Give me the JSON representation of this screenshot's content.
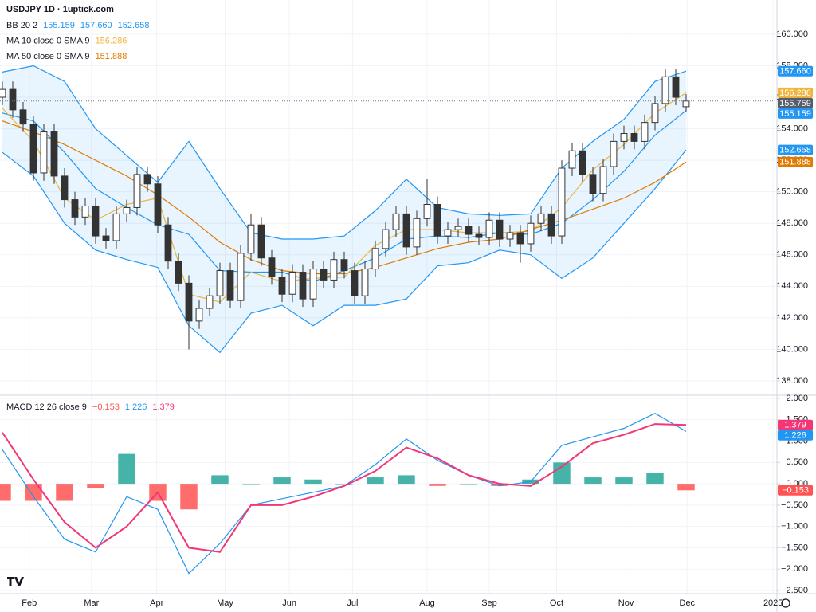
{
  "chart_data": [
    {
      "type": "candlestick",
      "title": "USDJPY 1D · 1uptick.com",
      "open": [
        156.0,
        156.5,
        155.2,
        154.3,
        151.2,
        153.8,
        151.0,
        149.5,
        148.4,
        149.1,
        147.2,
        146.9,
        148.6,
        149.0,
        151.1,
        150.5,
        147.9,
        145.6,
        144.2,
        141.8,
        142.6,
        143.4,
        145.0,
        143.1,
        146.1,
        147.9,
        145.8,
        144.6,
        143.5,
        144.9,
        143.2,
        145.1,
        144.4,
        145.7,
        145.0,
        143.4,
        145.1,
        146.4,
        147.6,
        148.6,
        146.5,
        148.3,
        149.2,
        147.2,
        147.6,
        147.8,
        147.3,
        147.1,
        148.2,
        147.0,
        147.4,
        146.7,
        148.0,
        148.6,
        147.2,
        151.5,
        152.6,
        151.1,
        149.9,
        151.6,
        153.2,
        153.7,
        153.2,
        154.4,
        155.6,
        157.3,
        155.4
      ],
      "high": [
        157.0,
        157.0,
        155.7,
        154.8,
        154.3,
        154.3,
        151.5,
        150.0,
        149.6,
        149.6,
        147.7,
        149.1,
        149.5,
        151.6,
        151.6,
        151.0,
        148.4,
        146.1,
        144.7,
        143.1,
        143.9,
        145.5,
        145.5,
        146.6,
        148.6,
        148.4,
        146.3,
        145.1,
        145.4,
        145.4,
        145.6,
        145.6,
        146.2,
        146.2,
        145.5,
        145.6,
        146.9,
        148.1,
        149.1,
        149.1,
        148.8,
        150.8,
        149.7,
        148.1,
        148.3,
        148.3,
        147.8,
        148.7,
        148.7,
        147.9,
        147.9,
        148.5,
        149.1,
        149.1,
        152.0,
        153.1,
        153.1,
        151.6,
        152.1,
        153.7,
        154.2,
        154.2,
        154.9,
        156.1,
        157.8,
        157.8,
        156.2
      ],
      "low": [
        155.5,
        154.7,
        153.8,
        150.7,
        150.7,
        150.5,
        149.0,
        147.9,
        147.9,
        146.7,
        146.4,
        146.4,
        148.1,
        148.5,
        150.0,
        147.4,
        145.1,
        143.7,
        140.0,
        141.3,
        142.1,
        142.9,
        142.6,
        142.6,
        145.6,
        145.3,
        144.1,
        143.0,
        143.0,
        142.7,
        142.7,
        143.9,
        143.9,
        144.5,
        142.9,
        142.9,
        144.6,
        145.9,
        147.1,
        146.0,
        146.0,
        147.8,
        146.7,
        146.7,
        147.1,
        146.8,
        146.6,
        146.6,
        146.5,
        146.5,
        145.5,
        146.2,
        147.5,
        146.7,
        146.7,
        151.0,
        150.6,
        149.4,
        149.4,
        151.1,
        152.7,
        152.7,
        152.7,
        153.9,
        155.1,
        155.5,
        155.1
      ],
      "close": [
        156.5,
        155.2,
        154.3,
        151.2,
        153.8,
        151.0,
        149.5,
        148.4,
        149.1,
        147.2,
        146.9,
        148.6,
        149.0,
        151.1,
        150.5,
        147.9,
        145.6,
        144.2,
        141.8,
        142.6,
        143.4,
        145.0,
        143.1,
        146.1,
        147.9,
        145.8,
        144.6,
        143.5,
        144.9,
        143.2,
        145.1,
        144.4,
        145.7,
        145.0,
        143.4,
        145.1,
        146.4,
        147.6,
        148.6,
        146.5,
        148.3,
        149.2,
        147.2,
        147.6,
        147.8,
        147.3,
        147.1,
        148.2,
        147.0,
        147.4,
        146.7,
        148.0,
        148.6,
        147.2,
        151.5,
        152.6,
        151.1,
        149.9,
        151.6,
        153.2,
        153.7,
        153.2,
        154.4,
        155.6,
        157.3,
        156.0,
        155.759
      ],
      "line_x": [
        0,
        3,
        6,
        9,
        12,
        15,
        18,
        21,
        24,
        27,
        30,
        33,
        36,
        39,
        42,
        45,
        48,
        51,
        54,
        57,
        60,
        63,
        66
      ],
      "indicators": [
        {
          "label": "BB 20 2",
          "fill": "rgba(33,150,243,0.1)",
          "values": [
            155.159,
            157.66,
            152.658
          ],
          "value_labels": [
            "155.159",
            "157.660",
            "152.658"
          ],
          "lines": [
            {
              "color": "#2196f3",
              "values": [
                155.0,
                154.5,
                152.5,
                150.2,
                149.0,
                147.9,
                147.3,
                145.0,
                144.9,
                144.9,
                144.3,
                145.0,
                145.8,
                147.0,
                147.2,
                147.1,
                147.4,
                147.3,
                148.0,
                149.5,
                151.3,
                153.6,
                155.159
              ]
            },
            {
              "color": "#2196f3",
              "values": [
                157.6,
                158.0,
                157.0,
                154.0,
                152.3,
                150.6,
                153.2,
                150.2,
                147.4,
                147.0,
                147.0,
                147.2,
                148.8,
                150.8,
                149.0,
                148.6,
                148.5,
                148.6,
                151.5,
                153.2,
                154.6,
                157.0,
                157.66
              ]
            },
            {
              "color": "#2196f3",
              "values": [
                152.5,
                151.0,
                148.0,
                146.3,
                145.7,
                145.2,
                141.5,
                139.8,
                142.3,
                142.8,
                141.5,
                142.8,
                142.8,
                143.2,
                145.3,
                145.5,
                146.3,
                146.0,
                144.5,
                145.8,
                148.0,
                150.2,
                152.658
              ]
            }
          ]
        },
        {
          "label": "MA 10 close 0 SMA 9",
          "values": [
            156.286
          ],
          "value_labels": [
            "156.286"
          ],
          "lines": [
            {
              "color": "#f0b43c",
              "values": [
                155.3,
                153.2,
                149.6,
                148.2,
                149.2,
                149.6,
                143.5,
                143.0,
                144.9,
                144.3,
                144.5,
                144.6,
                146.6,
                147.6,
                147.6,
                147.4,
                147.4,
                147.5,
                149.0,
                151.4,
                153.0,
                155.0,
                156.286
              ]
            }
          ]
        },
        {
          "label": "MA 50 close 0 SMA 9",
          "values": [
            151.888
          ],
          "value_labels": [
            "151.888"
          ],
          "lines": [
            {
              "color": "#e07b00",
              "values": [
                154.5,
                153.8,
                153.0,
                152.0,
                151.0,
                149.8,
                148.4,
                146.8,
                145.7,
                145.0,
                144.8,
                144.8,
                145.2,
                145.8,
                146.4,
                146.8,
                147.0,
                147.6,
                148.2,
                148.9,
                149.6,
                150.6,
                151.888
              ]
            }
          ]
        }
      ],
      "up_color": "#ffffff",
      "down_color": "#333333",
      "wick_color": "#333333",
      "xlim": [
        -0.23,
        74.77
      ],
      "xticks": [
        {
          "value": 2.6,
          "label": "Feb"
        },
        {
          "value": 8.6,
          "label": "Mar"
        },
        {
          "value": 14.9,
          "label": "Apr"
        },
        {
          "value": 21.5,
          "label": "May"
        },
        {
          "value": 27.7,
          "label": "Jun"
        },
        {
          "value": 33.8,
          "label": "Jul"
        },
        {
          "value": 41,
          "label": "Aug"
        },
        {
          "value": 47,
          "label": "Sep"
        },
        {
          "value": 53.5,
          "label": "Oct"
        },
        {
          "value": 60.2,
          "label": "Nov"
        },
        {
          "value": 66.1,
          "label": "Dec"
        },
        {
          "value": 74.4,
          "label": "2025"
        }
      ],
      "ylim": [
        137.14,
        162.17
      ],
      "yticks": [
        {
          "value": 138,
          "label": "138.000"
        },
        {
          "value": 140,
          "label": "140.000"
        },
        {
          "value": 142,
          "label": "142.000"
        },
        {
          "value": 144,
          "label": "144.000"
        },
        {
          "value": 146,
          "label": "146.000"
        },
        {
          "value": 148,
          "label": "148.000"
        },
        {
          "value": 150,
          "label": "150.000"
        },
        {
          "value": 152,
          "label": "152.000"
        },
        {
          "value": 154,
          "label": "154.000"
        },
        {
          "value": 156,
          "label": "156.000"
        },
        {
          "value": 158,
          "label": "158.000"
        },
        {
          "value": 160,
          "label": "160.000"
        }
      ],
      "grid": true
    },
    {
      "type": "macd",
      "line_x": [
        0,
        3,
        6,
        9,
        12,
        15,
        18,
        21,
        24,
        27,
        30,
        33,
        36,
        39,
        42,
        45,
        48,
        51,
        54,
        57,
        60,
        63,
        66
      ],
      "indicators": [
        {
          "label": "MACD 12 26 close 9",
          "values": [
            -0.153,
            1.226,
            1.379
          ],
          "value_labels": [
            "−0.153",
            "1.226",
            "1.379"
          ],
          "lines": [
            {
              "color": "#ff5252",
              "histogram": true,
              "values": [
                -0.4,
                -0.4,
                -0.4,
                -0.1,
                0.7,
                -0.4,
                -0.6,
                0.2,
                0.0,
                0.15,
                0.1,
                0.0,
                0.15,
                0.2,
                -0.05,
                0.0,
                -0.05,
                0.1,
                0.5,
                0.15,
                0.15,
                0.25,
                -0.153
              ]
            },
            {
              "color": "#2196f3",
              "values": [
                0.8,
                -0.3,
                -1.3,
                -1.6,
                -0.3,
                -0.6,
                -2.1,
                -1.4,
                -0.5,
                -0.35,
                -0.2,
                -0.05,
                0.45,
                1.05,
                0.55,
                0.2,
                -0.05,
                0.05,
                0.9,
                1.1,
                1.3,
                1.65,
                1.226
              ]
            },
            {
              "color": "#f23676",
              "values": [
                1.2,
                0.1,
                -0.9,
                -1.5,
                -1.0,
                -0.2,
                -1.5,
                -1.6,
                -0.5,
                -0.5,
                -0.3,
                -0.05,
                0.3,
                0.85,
                0.6,
                0.2,
                0.0,
                -0.05,
                0.4,
                0.95,
                1.15,
                1.4,
                1.379
              ]
            }
          ]
        }
      ],
      "hist_colors": [
        "#26a69a",
        "#ff5252"
      ],
      "xlim": [
        -0.23,
        74.77
      ],
      "ylim": [
        -2.575,
        2.056
      ],
      "yticks": [
        {
          "value": 2,
          "label": "2.000"
        },
        {
          "value": 1.5,
          "label": "1.500"
        },
        {
          "value": 1,
          "label": "1.000"
        },
        {
          "value": 0.5,
          "label": "0.500"
        },
        {
          "value": 0,
          "label": "0.000"
        },
        {
          "value": -0.5,
          "label": "−0.500"
        },
        {
          "value": -1,
          "label": "−1.000"
        },
        {
          "value": -1.5,
          "label": "−1.500"
        },
        {
          "value": -2,
          "label": "−2.000"
        },
        {
          "value": -2.5,
          "label": "−2.500"
        }
      ],
      "grid": true
    }
  ]
}
